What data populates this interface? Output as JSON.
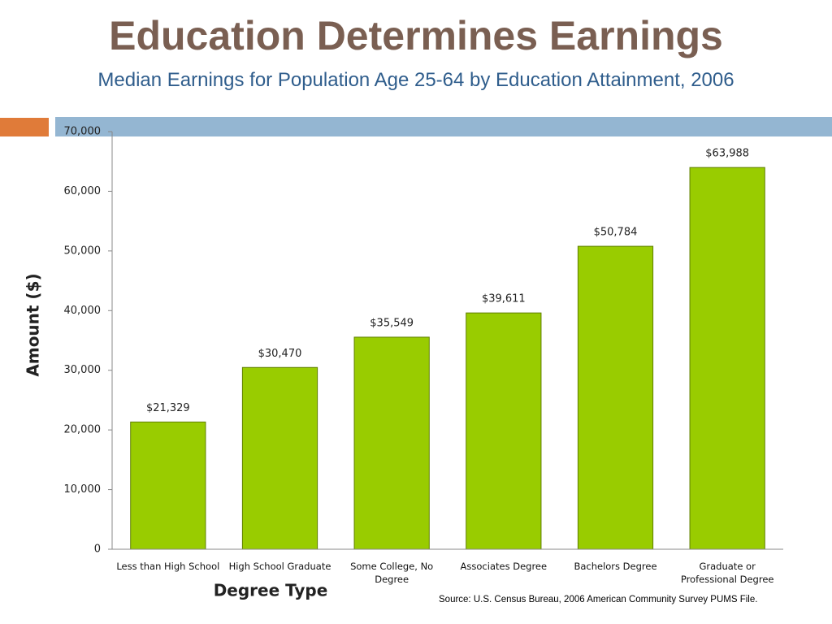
{
  "chart_data": {
    "type": "bar",
    "title": "Education Determines Earnings",
    "subtitle": "Median Earnings for Population Age 25-64 by Education Attainment, 2006",
    "x_label": "Degree Type",
    "y_label": "Amount ($)",
    "source": "Source:  U.S. Census Bureau, 2006 American Community Survey PUMS File.",
    "categories": [
      "Less than High School",
      "High School Graduate",
      "Some College, No Degree",
      "Associates Degree",
      "Bachelors Degree",
      "Graduate or Professional Degree"
    ],
    "values": [
      21329,
      30470,
      35549,
      39611,
      50784,
      63988
    ],
    "value_labels": [
      "$21,329",
      "$30,470",
      "$35,549",
      "$39,611",
      "$50,784",
      "$63,988"
    ],
    "color": "#99cc00",
    "ylim": [
      0,
      70000
    ],
    "yticks": [
      0,
      {
        "value": 10000,
        "label": "10,000"
      },
      {
        "value": 20000,
        "label": "20,000"
      },
      {
        "value": 30000,
        "label": "30,000"
      },
      {
        "value": 40000,
        "label": "40,000"
      },
      {
        "value": 50000,
        "label": "50,000"
      },
      {
        "value": 60000,
        "label": "60,000"
      },
      {
        "value": 70000,
        "label": "70,000"
      }
    ],
    "grid": false
  }
}
